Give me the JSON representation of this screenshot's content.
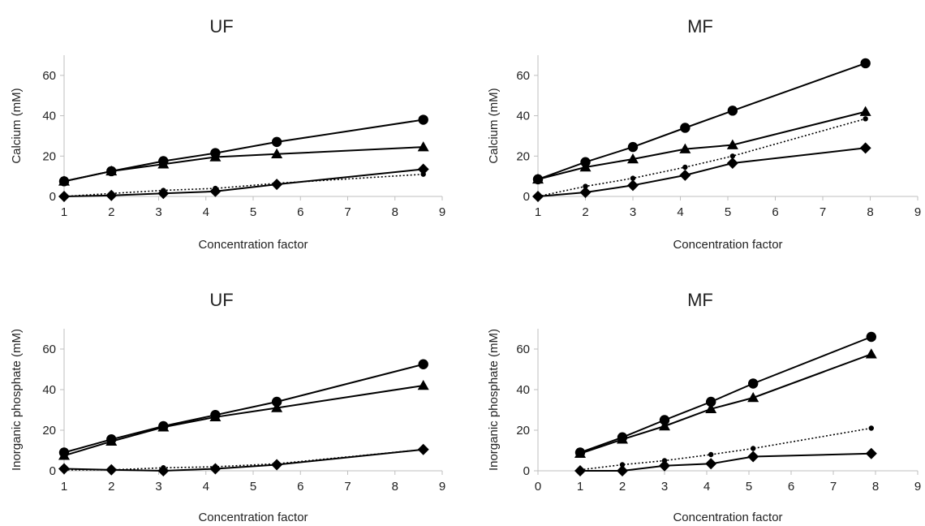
{
  "figure": {
    "colors": {
      "axis": "#bfbfbf",
      "series": "#000000",
      "text": "#222222",
      "background": "#ffffff"
    }
  },
  "chart_data": [
    {
      "type": "line",
      "title": "UF",
      "xlabel": "Concentration factor",
      "ylabel": "Calcium (mM)",
      "xlim": [
        1,
        9
      ],
      "ylim": [
        0,
        70
      ],
      "xticks": [
        1,
        2,
        3,
        4,
        5,
        6,
        7,
        8,
        9
      ],
      "yticks": [
        0,
        20,
        40,
        60
      ],
      "grid": false,
      "series": [
        {
          "marker": "circle",
          "line": "solid",
          "x": [
            1,
            2,
            3.1,
            4.2,
            5.5,
            8.6
          ],
          "y": [
            7.5,
            12.5,
            17.5,
            21.5,
            27,
            38
          ]
        },
        {
          "marker": "triangle",
          "line": "solid",
          "x": [
            1,
            2,
            3.1,
            4.2,
            5.5,
            8.6
          ],
          "y": [
            7.5,
            12.5,
            16,
            19.5,
            21,
            24.5
          ]
        },
        {
          "marker": "small-circle",
          "line": "dotted",
          "x": [
            1,
            2,
            3.1,
            4.2,
            5.5,
            8.6
          ],
          "y": [
            0,
            1.5,
            3,
            4,
            6.5,
            11
          ]
        },
        {
          "marker": "diamond",
          "line": "solid",
          "x": [
            1,
            2,
            3.1,
            4.2,
            5.5,
            8.6
          ],
          "y": [
            0,
            0.5,
            1.5,
            2.5,
            6,
            13.5
          ]
        }
      ]
    },
    {
      "type": "line",
      "title": "MF",
      "xlabel": "Concentration factor",
      "ylabel": "Calcium (mM)",
      "xlim": [
        1,
        9
      ],
      "ylim": [
        0,
        70
      ],
      "xticks": [
        1,
        2,
        3,
        4,
        5,
        6,
        7,
        8,
        9
      ],
      "yticks": [
        0,
        20,
        40,
        60
      ],
      "grid": false,
      "series": [
        {
          "marker": "circle",
          "line": "solid",
          "x": [
            1,
            2,
            3,
            4.1,
            5.1,
            7.9
          ],
          "y": [
            8.5,
            17,
            24.5,
            34,
            42.5,
            66
          ]
        },
        {
          "marker": "triangle",
          "line": "solid",
          "x": [
            1,
            2,
            3,
            4.1,
            5.1,
            7.9
          ],
          "y": [
            8.5,
            14.5,
            18.5,
            23.5,
            25.5,
            42
          ]
        },
        {
          "marker": "small-circle",
          "line": "dotted",
          "x": [
            1,
            2,
            3,
            4.1,
            5.1,
            7.9
          ],
          "y": [
            0,
            5,
            9,
            14.5,
            20,
            38.5
          ]
        },
        {
          "marker": "diamond",
          "line": "solid",
          "x": [
            1,
            2,
            3,
            4.1,
            5.1,
            7.9
          ],
          "y": [
            0,
            2,
            5.5,
            10.5,
            16.5,
            24
          ]
        }
      ]
    },
    {
      "type": "line",
      "title": "UF",
      "xlabel": "Concentration factor",
      "ylabel": "Inorganic phosphate (mM)",
      "xlim": [
        1,
        9
      ],
      "ylim": [
        0,
        70
      ],
      "xticks": [
        1,
        2,
        3,
        4,
        5,
        6,
        7,
        8,
        9
      ],
      "yticks": [
        0,
        20,
        40,
        60
      ],
      "grid": false,
      "series": [
        {
          "marker": "circle",
          "line": "solid",
          "x": [
            1,
            2,
            3.1,
            4.2,
            5.5,
            8.6
          ],
          "y": [
            9,
            15.5,
            22,
            27.5,
            34,
            52.5
          ]
        },
        {
          "marker": "triangle",
          "line": "solid",
          "x": [
            1,
            2,
            3.1,
            4.2,
            5.5,
            8.6
          ],
          "y": [
            7.5,
            14.5,
            21.5,
            26.5,
            31,
            42
          ]
        },
        {
          "marker": "small-circle",
          "line": "dotted",
          "x": [
            1,
            2,
            3.1,
            4.2,
            5.5,
            8.6
          ],
          "y": [
            0.5,
            0.5,
            1.5,
            2,
            3.5,
            10.5
          ]
        },
        {
          "marker": "diamond",
          "line": "solid",
          "x": [
            1,
            2,
            3.1,
            4.2,
            5.5,
            8.6
          ],
          "y": [
            1,
            0.5,
            0,
            1,
            3,
            10.5
          ]
        }
      ]
    },
    {
      "type": "line",
      "title": "MF",
      "xlabel": "Concentration factor",
      "ylabel": "Inorganic phosphate (mM)",
      "xlim": [
        0,
        9
      ],
      "ylim": [
        0,
        70
      ],
      "xticks": [
        0,
        1,
        2,
        3,
        4,
        5,
        6,
        7,
        8,
        9
      ],
      "yticks": [
        0,
        20,
        40,
        60
      ],
      "grid": false,
      "series": [
        {
          "marker": "circle",
          "line": "solid",
          "x": [
            1,
            2,
            3,
            4.1,
            5.1,
            7.9
          ],
          "y": [
            9,
            16.5,
            25,
            34,
            43,
            66
          ]
        },
        {
          "marker": "triangle",
          "line": "solid",
          "x": [
            1,
            2,
            3,
            4.1,
            5.1,
            7.9
          ],
          "y": [
            8.5,
            15.5,
            22,
            30.5,
            36,
            57.5
          ]
        },
        {
          "marker": "small-circle",
          "line": "dotted",
          "x": [
            1,
            2,
            3,
            4.1,
            5.1,
            7.9
          ],
          "y": [
            0.5,
            3,
            5,
            8,
            11,
            21
          ]
        },
        {
          "marker": "diamond",
          "line": "solid",
          "x": [
            1,
            2,
            3,
            4.1,
            5.1,
            7.9
          ],
          "y": [
            0,
            0,
            2.5,
            3.5,
            7,
            8.5
          ]
        }
      ]
    }
  ]
}
